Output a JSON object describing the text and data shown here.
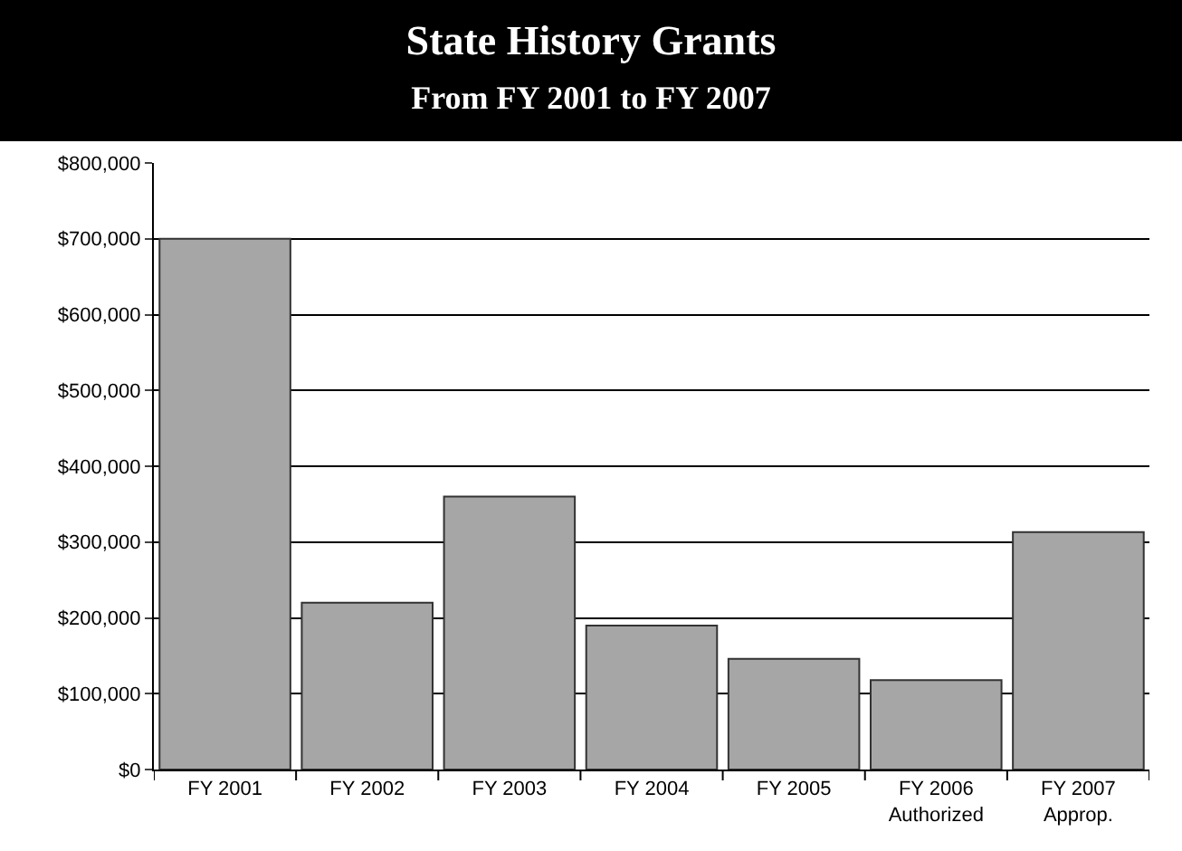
{
  "chart_data": {
    "type": "bar",
    "title": "State History Grants",
    "subtitle": "From FY 2001 to FY 2007",
    "categories": [
      "FY 2001",
      "FY 2002",
      "FY 2003",
      "FY 2004",
      "FY 2005",
      "FY 2006\nAuthorized",
      "FY 2007\nApprop."
    ],
    "values": [
      700000,
      220000,
      360000,
      190000,
      146000,
      118000,
      313000
    ],
    "color": "#a6a6a6",
    "ylim": [
      0,
      800000
    ],
    "yticks": [
      {
        "value": 0,
        "label": "$0"
      },
      {
        "value": 100000,
        "label": "$100,000"
      },
      {
        "value": 200000,
        "label": "$200,000"
      },
      {
        "value": 300000,
        "label": "$300,000"
      },
      {
        "value": 400000,
        "label": "$400,000"
      },
      {
        "value": 500000,
        "label": "$500,000"
      },
      {
        "value": 600000,
        "label": "$600,000"
      },
      {
        "value": 700000,
        "label": "$700,000"
      },
      {
        "value": 800000,
        "label": "$800,000"
      }
    ],
    "grid": "y"
  }
}
